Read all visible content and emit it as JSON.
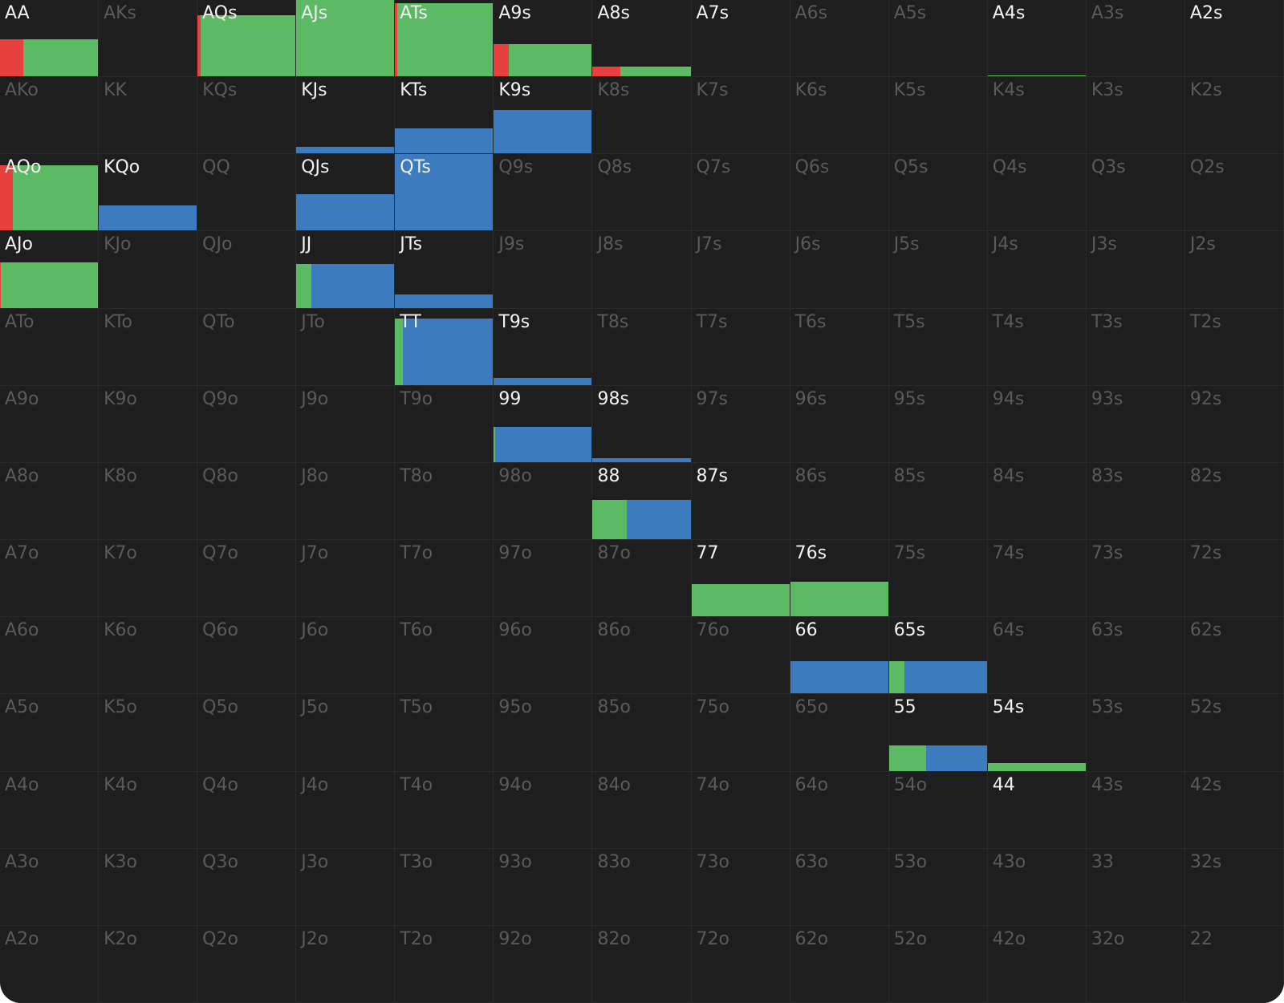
{
  "colors": [
    "#e8403e",
    "#5cb964",
    "#3c7bbd"
  ],
  "rows": [
    [
      {
        "label": "AA",
        "active": true,
        "bar": {
          "height": 49,
          "mix": [
            24,
            76,
            0
          ]
        }
      },
      {
        "label": "AKs"
      },
      {
        "label": "AQs",
        "active": true,
        "bar": {
          "height": 80,
          "mix": [
            3,
            97,
            0
          ]
        }
      },
      {
        "label": "AJs",
        "active": true,
        "bar": {
          "height": 100,
          "mix": [
            0,
            100,
            0
          ]
        }
      },
      {
        "label": "ATs",
        "active": true,
        "bar": {
          "height": 96,
          "mix": [
            2,
            98,
            0
          ]
        }
      },
      {
        "label": "A9s",
        "active": true,
        "bar": {
          "height": 42,
          "mix": [
            15,
            85,
            0
          ]
        }
      },
      {
        "label": "A8s",
        "active": true,
        "bar": {
          "height": 13,
          "mix": [
            28,
            72,
            0
          ]
        }
      },
      {
        "label": "A7s",
        "active": true
      },
      {
        "label": "A6s"
      },
      {
        "label": "A5s"
      },
      {
        "label": "A4s",
        "active": true,
        "bar": {
          "height": 1,
          "mix": [
            0,
            100,
            0
          ]
        }
      },
      {
        "label": "A3s"
      },
      {
        "label": "A2s",
        "active": true
      }
    ],
    [
      {
        "label": "AKo"
      },
      {
        "label": "KK"
      },
      {
        "label": "KQs"
      },
      {
        "label": "KJs",
        "active": true,
        "bar": {
          "height": 9,
          "mix": [
            0,
            0,
            100
          ]
        }
      },
      {
        "label": "KTs",
        "active": true,
        "bar": {
          "height": 33,
          "mix": [
            0,
            0,
            100
          ]
        }
      },
      {
        "label": "K9s",
        "active": true,
        "bar": {
          "height": 57,
          "mix": [
            0,
            0,
            100
          ]
        }
      },
      {
        "label": "K8s"
      },
      {
        "label": "K7s"
      },
      {
        "label": "K6s"
      },
      {
        "label": "K5s"
      },
      {
        "label": "K4s"
      },
      {
        "label": "K3s"
      },
      {
        "label": "K2s"
      }
    ],
    [
      {
        "label": "AQo",
        "active": true,
        "bar": {
          "height": 86,
          "mix": [
            13,
            87,
            0
          ]
        }
      },
      {
        "label": "KQo",
        "active": true,
        "bar": {
          "height": 33,
          "mix": [
            0,
            0,
            100
          ]
        }
      },
      {
        "label": "QQ"
      },
      {
        "label": "QJs",
        "active": true,
        "bar": {
          "height": 48,
          "mix": [
            0,
            0,
            100
          ]
        }
      },
      {
        "label": "QTs",
        "active": true,
        "bar": {
          "height": 100,
          "mix": [
            0,
            0,
            100
          ]
        }
      },
      {
        "label": "Q9s"
      },
      {
        "label": "Q8s"
      },
      {
        "label": "Q7s"
      },
      {
        "label": "Q6s"
      },
      {
        "label": "Q5s"
      },
      {
        "label": "Q4s"
      },
      {
        "label": "Q3s"
      },
      {
        "label": "Q2s"
      }
    ],
    [
      {
        "label": "AJo",
        "active": true,
        "bar": {
          "height": 59,
          "mix": [
            1,
            99,
            0
          ]
        }
      },
      {
        "label": "KJo"
      },
      {
        "label": "QJo"
      },
      {
        "label": "JJ",
        "active": true,
        "bar": {
          "height": 57,
          "mix": [
            0,
            15,
            85
          ]
        }
      },
      {
        "label": "JTs",
        "active": true,
        "bar": {
          "height": 17,
          "mix": [
            0,
            0,
            100
          ]
        }
      },
      {
        "label": "J9s"
      },
      {
        "label": "J8s"
      },
      {
        "label": "J7s"
      },
      {
        "label": "J6s"
      },
      {
        "label": "J5s"
      },
      {
        "label": "J4s"
      },
      {
        "label": "J3s"
      },
      {
        "label": "J2s"
      }
    ],
    [
      {
        "label": "ATo"
      },
      {
        "label": "KTo"
      },
      {
        "label": "QTo"
      },
      {
        "label": "JTo"
      },
      {
        "label": "TT",
        "active": true,
        "bar": {
          "height": 87,
          "mix": [
            0,
            8,
            92
          ]
        }
      },
      {
        "label": "T9s",
        "active": true,
        "bar": {
          "height": 9,
          "mix": [
            0,
            0,
            100
          ]
        }
      },
      {
        "label": "T8s"
      },
      {
        "label": "T7s"
      },
      {
        "label": "T6s"
      },
      {
        "label": "T5s"
      },
      {
        "label": "T4s"
      },
      {
        "label": "T3s"
      },
      {
        "label": "T2s"
      }
    ],
    [
      {
        "label": "A9o"
      },
      {
        "label": "K9o"
      },
      {
        "label": "Q9o"
      },
      {
        "label": "J9o"
      },
      {
        "label": "T9o"
      },
      {
        "label": "99",
        "active": true,
        "bar": {
          "height": 46,
          "mix": [
            0,
            1,
            99
          ]
        }
      },
      {
        "label": "98s",
        "active": true,
        "bar": {
          "height": 5,
          "mix": [
            0,
            0,
            100
          ]
        }
      },
      {
        "label": "97s"
      },
      {
        "label": "96s"
      },
      {
        "label": "95s"
      },
      {
        "label": "94s"
      },
      {
        "label": "93s"
      },
      {
        "label": "92s"
      }
    ],
    [
      {
        "label": "A8o"
      },
      {
        "label": "K8o"
      },
      {
        "label": "Q8o"
      },
      {
        "label": "J8o"
      },
      {
        "label": "T8o"
      },
      {
        "label": "98o"
      },
      {
        "label": "88",
        "active": true,
        "bar": {
          "height": 52,
          "mix": [
            0,
            35,
            65
          ]
        }
      },
      {
        "label": "87s",
        "active": true
      },
      {
        "label": "86s"
      },
      {
        "label": "85s"
      },
      {
        "label": "84s"
      },
      {
        "label": "83s"
      },
      {
        "label": "82s"
      }
    ],
    [
      {
        "label": "A7o"
      },
      {
        "label": "K7o"
      },
      {
        "label": "Q7o"
      },
      {
        "label": "J7o"
      },
      {
        "label": "T7o"
      },
      {
        "label": "97o"
      },
      {
        "label": "87o"
      },
      {
        "label": "77",
        "active": true,
        "bar": {
          "height": 42,
          "mix": [
            0,
            100,
            0
          ]
        }
      },
      {
        "label": "76s",
        "active": true,
        "bar": {
          "height": 45,
          "mix": [
            0,
            100,
            0
          ]
        }
      },
      {
        "label": "75s"
      },
      {
        "label": "74s"
      },
      {
        "label": "73s"
      },
      {
        "label": "72s"
      }
    ],
    [
      {
        "label": "A6o"
      },
      {
        "label": "K6o"
      },
      {
        "label": "Q6o"
      },
      {
        "label": "J6o"
      },
      {
        "label": "T6o"
      },
      {
        "label": "96o"
      },
      {
        "label": "86o"
      },
      {
        "label": "76o"
      },
      {
        "label": "66",
        "active": true,
        "bar": {
          "height": 42,
          "mix": [
            0,
            0,
            100
          ]
        }
      },
      {
        "label": "65s",
        "active": true,
        "bar": {
          "height": 42,
          "mix": [
            0,
            16,
            84
          ]
        }
      },
      {
        "label": "64s"
      },
      {
        "label": "63s"
      },
      {
        "label": "62s"
      }
    ],
    [
      {
        "label": "A5o"
      },
      {
        "label": "K5o"
      },
      {
        "label": "Q5o"
      },
      {
        "label": "J5o"
      },
      {
        "label": "T5o"
      },
      {
        "label": "95o"
      },
      {
        "label": "85o"
      },
      {
        "label": "75o"
      },
      {
        "label": "65o"
      },
      {
        "label": "55",
        "active": true,
        "bar": {
          "height": 33,
          "mix": [
            0,
            38,
            62
          ]
        }
      },
      {
        "label": "54s",
        "active": true,
        "bar": {
          "height": 10,
          "mix": [
            0,
            100,
            0
          ]
        }
      },
      {
        "label": "53s"
      },
      {
        "label": "52s"
      }
    ],
    [
      {
        "label": "A4o"
      },
      {
        "label": "K4o"
      },
      {
        "label": "Q4o"
      },
      {
        "label": "J4o"
      },
      {
        "label": "T4o"
      },
      {
        "label": "94o"
      },
      {
        "label": "84o"
      },
      {
        "label": "74o"
      },
      {
        "label": "64o"
      },
      {
        "label": "54o"
      },
      {
        "label": "44",
        "active": true
      },
      {
        "label": "43s"
      },
      {
        "label": "42s"
      }
    ],
    [
      {
        "label": "A3o"
      },
      {
        "label": "K3o"
      },
      {
        "label": "Q3o"
      },
      {
        "label": "J3o"
      },
      {
        "label": "T3o"
      },
      {
        "label": "93o"
      },
      {
        "label": "83o"
      },
      {
        "label": "73o"
      },
      {
        "label": "63o"
      },
      {
        "label": "53o"
      },
      {
        "label": "43o"
      },
      {
        "label": "33"
      },
      {
        "label": "32s"
      }
    ],
    [
      {
        "label": "A2o"
      },
      {
        "label": "K2o"
      },
      {
        "label": "Q2o"
      },
      {
        "label": "J2o"
      },
      {
        "label": "T2o"
      },
      {
        "label": "92o"
      },
      {
        "label": "82o"
      },
      {
        "label": "72o"
      },
      {
        "label": "62o"
      },
      {
        "label": "52o"
      },
      {
        "label": "42o"
      },
      {
        "label": "32o"
      },
      {
        "label": "22"
      }
    ]
  ]
}
